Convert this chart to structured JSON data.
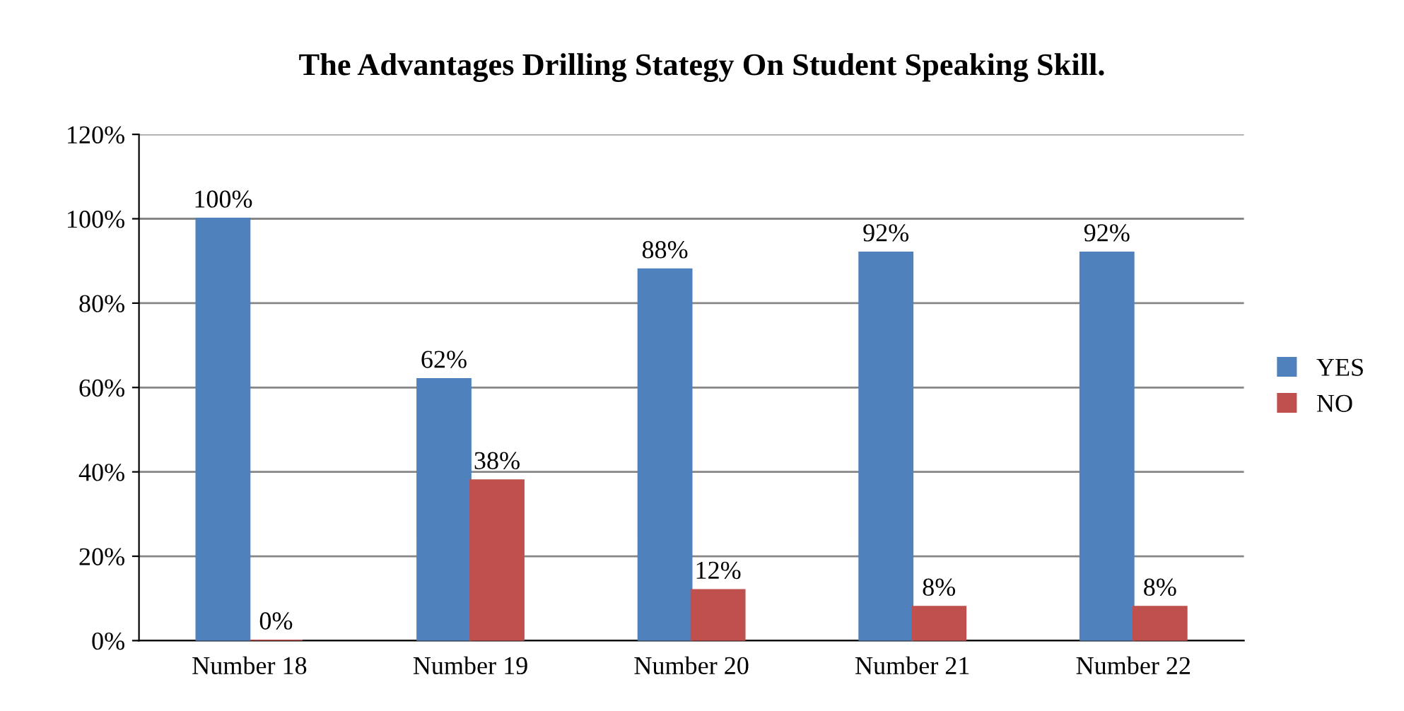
{
  "chart_data": {
    "type": "bar",
    "title": "The Advantages Drilling Stategy On Student Speaking Skill.",
    "categories": [
      "Number 18",
      "Number 19",
      "Number 20",
      "Number 21",
      "Number 22"
    ],
    "series": [
      {
        "name": "YES",
        "color": "#4f81bd",
        "values": [
          100,
          62,
          88,
          92,
          92
        ],
        "value_labels": [
          "100%",
          "62%",
          "88%",
          "92%",
          "92%"
        ]
      },
      {
        "name": "NO",
        "color": "#c0504d",
        "values": [
          0,
          38,
          12,
          8,
          8
        ],
        "value_labels": [
          "0%",
          "38%",
          "12%",
          "8%",
          "8%"
        ]
      }
    ],
    "ylim": [
      0,
      120
    ],
    "yticks": [
      {
        "value": 0,
        "label": "0%"
      },
      {
        "value": 20,
        "label": "20%"
      },
      {
        "value": 40,
        "label": "40%"
      },
      {
        "value": 60,
        "label": "60%"
      },
      {
        "value": 80,
        "label": "80%"
      },
      {
        "value": 100,
        "label": "100%"
      },
      {
        "value": 120,
        "label": "120%"
      }
    ],
    "grid": "y",
    "legend": "right"
  }
}
